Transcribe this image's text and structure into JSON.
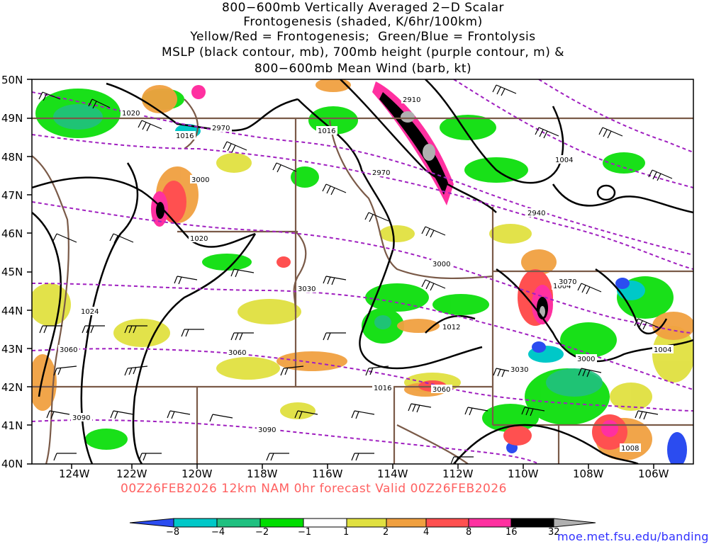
{
  "title_lines": [
    "800−600mb Vertically Averaged 2−D Scalar",
    "Frontogenesis (shaded, K/6hr/100km)",
    "Yellow/Red = Frontogenesis;  Green/Blue = Frontolysis",
    "MSLP (black contour, mb), 700mb height (purple contour, m) &",
    "800−600mb Mean Wind (barb, kt)"
  ],
  "lat_labels": [
    "50N",
    "49N",
    "48N",
    "47N",
    "46N",
    "45N",
    "44N",
    "43N",
    "42N",
    "41N",
    "40N"
  ],
  "lon_labels": [
    "124W",
    "122W",
    "120W",
    "118W",
    "116W",
    "114W",
    "112W",
    "110W",
    "108W",
    "106W"
  ],
  "footer": "00Z26FEB2026 12km NAM 0hr forecast Valid 00Z26FEB2026",
  "colorbar": {
    "labels": [
      "−8",
      "−4",
      "−2",
      "−1",
      "1",
      "2",
      "4",
      "8",
      "16",
      "32"
    ],
    "colors": [
      "#2b4cf0",
      "#00c8c8",
      "#20c080",
      "#00dd00",
      "#ffffff",
      "#e0e040",
      "#f0a040",
      "#ff5050",
      "#ff30a0",
      "#000000",
      "#b0b0b0"
    ]
  },
  "mslp_labels": [
    "1020",
    "1016",
    "1016",
    "1020",
    "1024",
    "1016",
    "1012",
    "1004",
    "1004",
    "1004",
    "1008"
  ],
  "height_labels": [
    "2910",
    "2970",
    "2970",
    "3000",
    "2940",
    "3000",
    "3030",
    "3060",
    "3060",
    "3060",
    "3090",
    "3090",
    "3030",
    "3000",
    "3070"
  ],
  "credit": "moe.met.fsu.edu/banding",
  "colors": {
    "mslp": "#000000",
    "height": "#a020c0",
    "borders": "#7a5a48",
    "footer": "#ff6060",
    "credit": "#3030ff"
  }
}
